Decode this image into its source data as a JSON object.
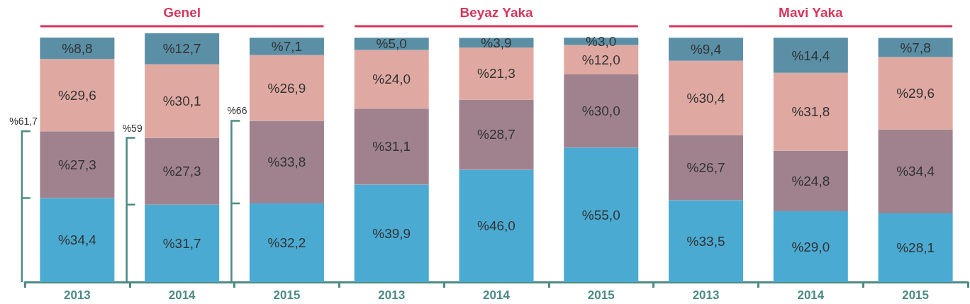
{
  "chart_data": {
    "type": "bar",
    "stacked": true,
    "categories": [
      "2013",
      "2014",
      "2015",
      "2013",
      "2014",
      "2015",
      "2013",
      "2014",
      "2015"
    ],
    "series": [
      {
        "color": "#4aaad2",
        "values": [
          34.4,
          31.7,
          32.2,
          39.9,
          46.0,
          55.0,
          33.5,
          29.0,
          28.1
        ],
        "value_labels": [
          "%34,4",
          "%31,7",
          "%32,2",
          "%39,9",
          "%46,0",
          "%55,0",
          "%33,5",
          "%29,0",
          "%28,1"
        ]
      },
      {
        "color": "#a0828f",
        "values": [
          27.3,
          27.3,
          33.8,
          31.1,
          28.7,
          30.0,
          26.7,
          24.8,
          34.4
        ],
        "value_labels": [
          "%27,3",
          "%27,3",
          "%33,8",
          "%31,1",
          "%28,7",
          "%30,0",
          "%26,7",
          "%24,8",
          "%34,4"
        ]
      },
      {
        "color": "#dfa9a2",
        "values": [
          29.6,
          30.1,
          26.9,
          24.0,
          21.3,
          12.0,
          30.4,
          31.8,
          29.6
        ],
        "value_labels": [
          "%29,6",
          "%30,1",
          "%26,9",
          "%24,0",
          "%21,3",
          "%12,0",
          "%30,4",
          "%31,8",
          "%29,6"
        ]
      },
      {
        "color": "#5a8fa6",
        "values": [
          8.8,
          12.7,
          7.1,
          5.0,
          3.9,
          3.0,
          9.4,
          14.4,
          7.8
        ],
        "value_labels": [
          "%8,8",
          "%12,7",
          "%7,1",
          "%5,0",
          "%3,9",
          "%3,0",
          "%9,4",
          "%14,4",
          "%7,8"
        ]
      }
    ],
    "annotations": [
      "Genel",
      "Beyaz Yaka",
      "Mavi Yaka",
      "%61,7",
      "%59",
      "%66"
    ],
    "grid": false
  }
}
